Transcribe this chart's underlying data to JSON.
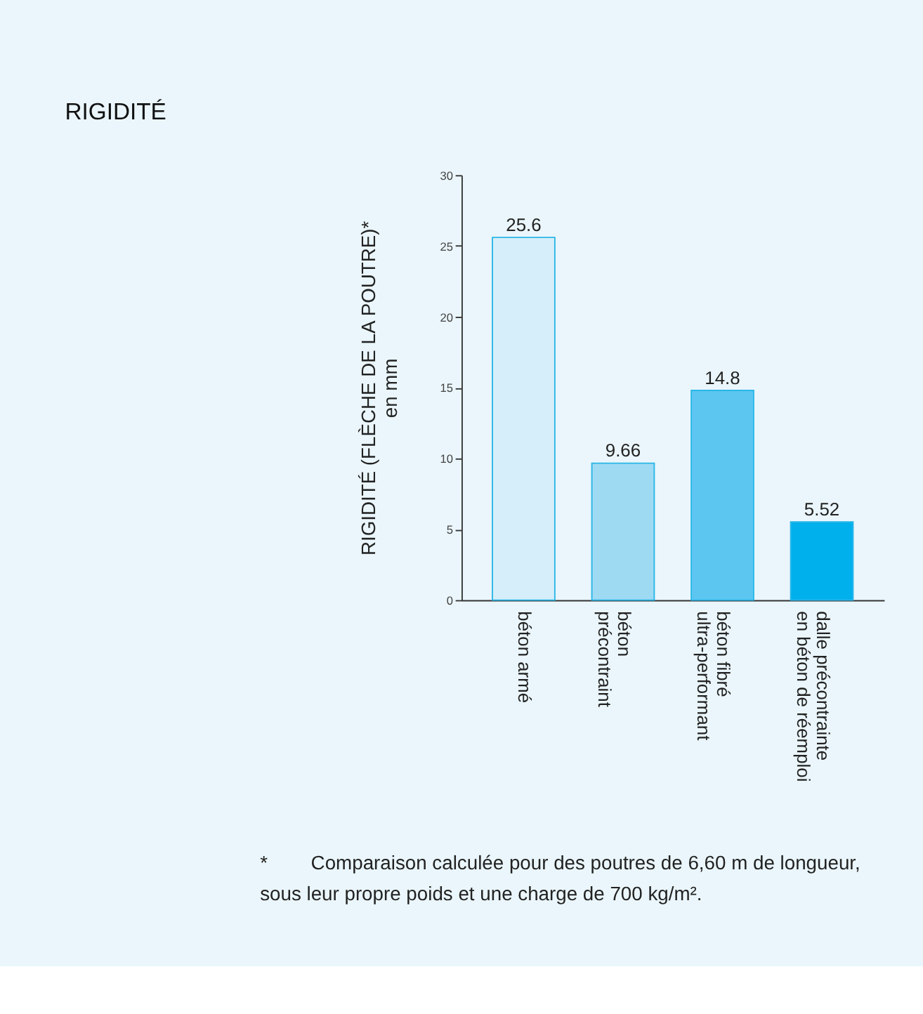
{
  "chart_data": {
    "type": "bar",
    "title": "RIGIDITÉ",
    "ylabel": "RIGIDITÉ (FLÈCHE DE LA POUTRE)*\nen mm",
    "categories": [
      "béton armé",
      "béton\nprécontraint",
      "béton fibré\nultra-performant",
      "dalle précontrainte\nen béton de réemploi"
    ],
    "values": [
      25.6,
      9.66,
      14.8,
      5.52
    ],
    "colors": [
      "#d6eef9",
      "#9fdaf3",
      "#5cc6f0",
      "#00b0ec"
    ],
    "ylim": [
      0,
      30
    ],
    "yticks": [
      0,
      5,
      10,
      15,
      20,
      25,
      30
    ],
    "grid": false,
    "data_labels": true,
    "annotations": [
      "*        Comparaison calculée pour des poutres de 6,60 m de longueur,\n          sous leur propre poids et une charge de 700 kg/m²."
    ]
  }
}
